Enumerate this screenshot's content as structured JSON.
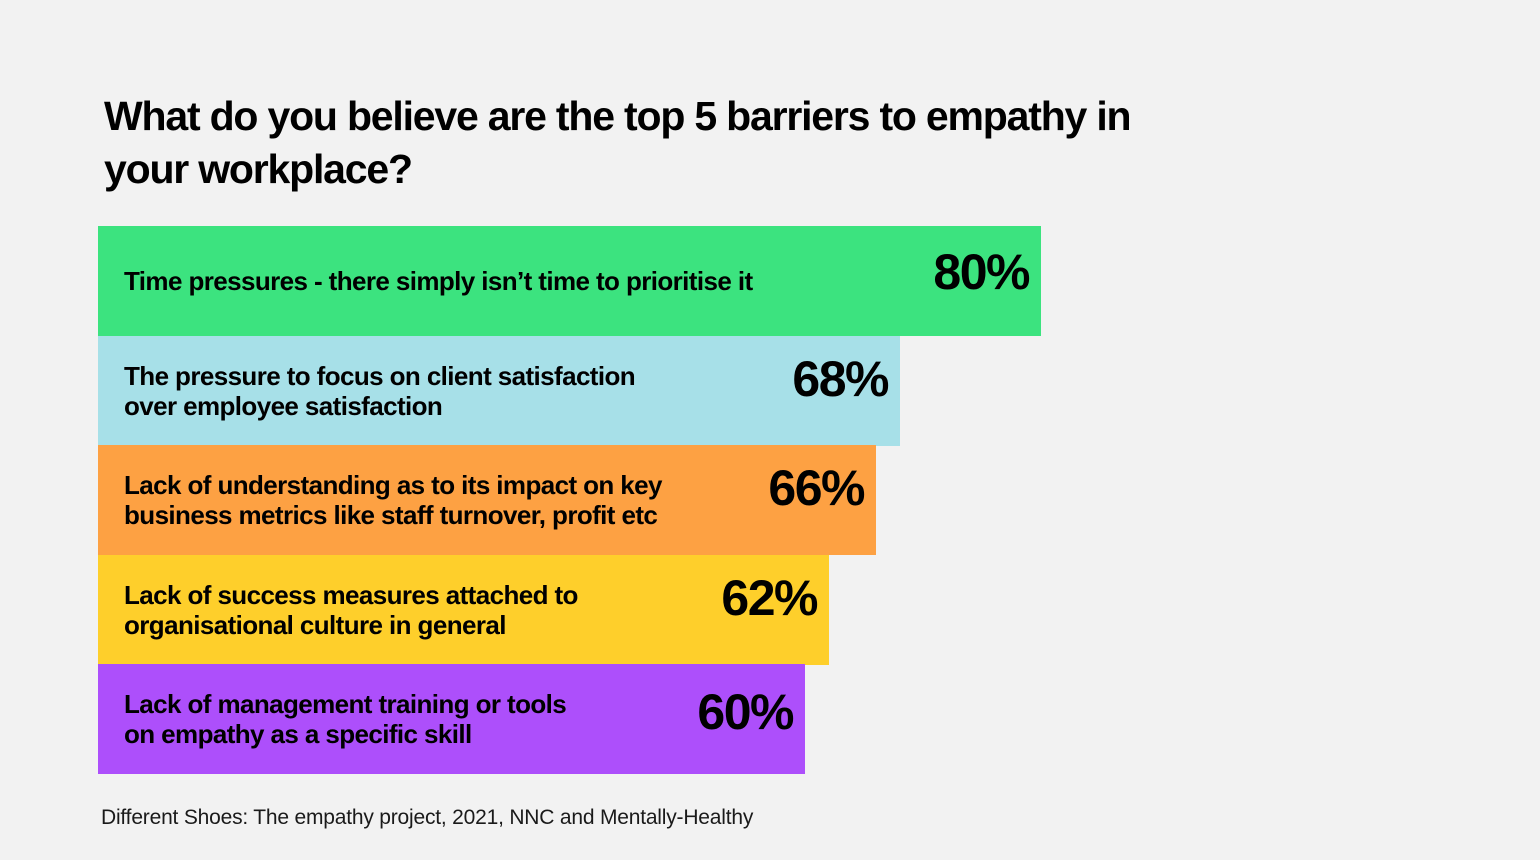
{
  "chart_data": {
    "type": "bar",
    "orientation": "horizontal",
    "title": "What do you believe are the top 5 barriers to empathy in your workplace?",
    "categories": [
      "Time pressures - there simply isn’t time to prioritise it",
      "The pressure to focus on client satisfaction\nover employee satisfaction",
      "Lack of understanding as to its impact on key\nbusiness metrics like staff turnover, profit etc",
      "Lack of success measures attached to\norganisational culture in general",
      "Lack of management training or tools\non empathy as a specific skill"
    ],
    "values": [
      80,
      68,
      66,
      62,
      60
    ],
    "value_labels": [
      "80%",
      "68%",
      "66%",
      "62%",
      "60%"
    ],
    "colors": [
      "#3ce37f",
      "#a7e0e8",
      "#fda143",
      "#fecf2b",
      "#ad4ffb"
    ],
    "xlabel": "",
    "ylabel": "",
    "xlim": [
      0,
      100
    ],
    "grid": false,
    "legend": "none"
  },
  "source": "Different Shoes: The empathy project, 2021, NNC and Mentally-Healthy"
}
